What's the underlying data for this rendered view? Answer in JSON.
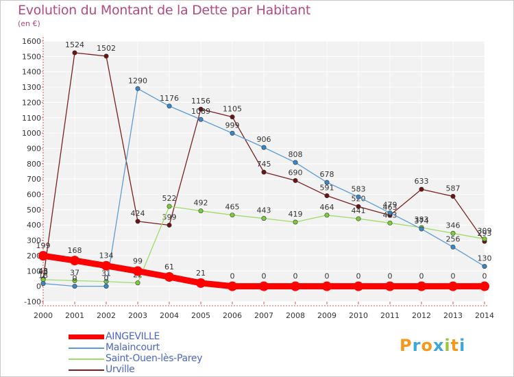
{
  "title": "Evolution du Montant de la Dette par Habitant",
  "subtitle": "(en €)",
  "logo": {
    "text": "Proxiti",
    "letter_colors": [
      "#f39a1e",
      "#3ea6d8",
      "#f39a1e",
      "#3ea6d8",
      "#9ac43a",
      "#f39a1e",
      "#3ea6d8"
    ]
  },
  "chart_data": {
    "type": "line",
    "title": "Evolution du Montant de la Dette par Habitant",
    "subtitle": "(en €)",
    "xlabel": "",
    "ylabel": "",
    "x": [
      2000,
      2001,
      2002,
      2003,
      2004,
      2005,
      2006,
      2007,
      2008,
      2009,
      2010,
      2011,
      2012,
      2013,
      2014
    ],
    "ylim": [
      -100,
      1600
    ],
    "yticks": [
      -100,
      0,
      100,
      200,
      300,
      400,
      500,
      600,
      700,
      800,
      900,
      1000,
      1100,
      1200,
      1300,
      1400,
      1500,
      1600
    ],
    "grid": true,
    "legend_position": "bottom-left",
    "series": [
      {
        "name": "AINGEVILLE",
        "color": "#ff0000",
        "marker_color": "#ff0000",
        "values": [
          199,
          168,
          134,
          99,
          61,
          21,
          0,
          0,
          0,
          0,
          0,
          0,
          0,
          0,
          0
        ],
        "labels": [
          "199",
          "168",
          "134",
          "99",
          "61",
          "21",
          "0",
          "0",
          "0",
          "0",
          "0",
          "0",
          "0",
          "0",
          "0"
        ]
      },
      {
        "name": "Malaincourt",
        "color": "#5b9bd5",
        "marker_color": "#3a87c8",
        "values": [
          18,
          0,
          0,
          1290,
          1176,
          1089,
          999,
          906,
          808,
          678,
          583,
          479,
          374,
          256,
          130
        ],
        "labels": [
          "18",
          "0",
          "0",
          "1290",
          "1176",
          "1089",
          "999",
          "906",
          "808",
          "678",
          "583",
          "479",
          "374",
          "256",
          "130"
        ]
      },
      {
        "name": "Saint-Ouen-lès-Parey",
        "color": "#9cdd6a",
        "marker_color": "#7ccc3a",
        "values": [
          43,
          37,
          31,
          22,
          522,
          492,
          465,
          443,
          419,
          464,
          441,
          413,
          383,
          346,
          309
        ],
        "labels": [
          "43",
          "37",
          "31",
          "22",
          "522",
          "492",
          "465",
          "443",
          "419",
          "464",
          "441",
          "413",
          "383",
          "346",
          "309"
        ]
      },
      {
        "name": "Urville",
        "color": "#7a1e1e",
        "marker_color": "#6a1414",
        "values": [
          48,
          1524,
          1502,
          424,
          399,
          1156,
          1105,
          745,
          690,
          591,
          520,
          463,
          633,
          587,
          293
        ],
        "labels": [
          "48",
          "1524",
          "1502",
          "424",
          "399",
          "1156",
          "1105",
          "745",
          "690",
          "591",
          "520",
          "463",
          "633",
          "587",
          "293"
        ]
      }
    ]
  }
}
